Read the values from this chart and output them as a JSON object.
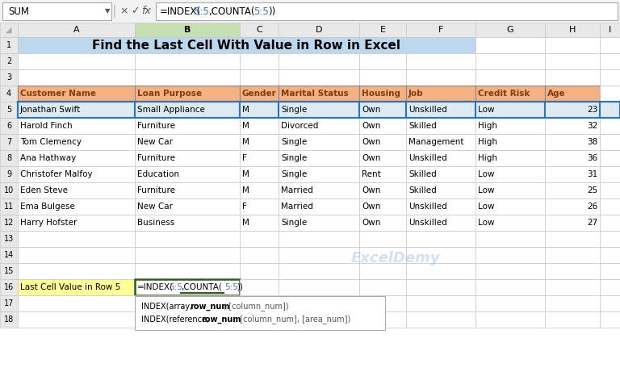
{
  "title": "Find the Last Cell With Value in Row in Excel",
  "name_box": "SUM",
  "col_letters": [
    "A",
    "B",
    "C",
    "D",
    "E",
    "F",
    "G",
    "H",
    "I"
  ],
  "headers": [
    "Customer Name",
    "Loan Purpose",
    "Gender",
    "Marital Status",
    "Housing",
    "Job",
    "Credit Risk",
    "Age"
  ],
  "data": [
    [
      "Jonathan Swift",
      "Small Appliance",
      "M",
      "Single",
      "Own",
      "Unskilled",
      "Low",
      "23"
    ],
    [
      "Harold Finch",
      "Furniture",
      "M",
      "Divorced",
      "Own",
      "Skilled",
      "High",
      "32"
    ],
    [
      "Tom Clemency",
      "New Car",
      "M",
      "Single",
      "Own",
      "Management",
      "High",
      "38"
    ],
    [
      "Ana Hathway",
      "Furniture",
      "F",
      "Single",
      "Own",
      "Unskilled",
      "High",
      "36"
    ],
    [
      "Christofer Malfoy",
      "Education",
      "M",
      "Single",
      "Rent",
      "Skilled",
      "Low",
      "31"
    ],
    [
      "Eden Steve",
      "Furniture",
      "M",
      "Married",
      "Own",
      "Skilled",
      "Low",
      "25"
    ],
    [
      "Ema Bulgese",
      "New Car",
      "F",
      "Married",
      "Own",
      "Unskilled",
      "Low",
      "26"
    ],
    [
      "Harry Hofster",
      "Business",
      "M",
      "Single",
      "Own",
      "Unskilled",
      "Low",
      "27"
    ]
  ],
  "label_row16_A": "Last Cell Value in Row 5",
  "watermark": "ExcelDemy",
  "header_bg": "#F4B183",
  "title_bg": "#BDD7EE",
  "row5_highlight": "#DEEAF1",
  "row16_A_bg": "#FFFF99",
  "grid_color": "#C8C8C8",
  "dark_grid": "#888888",
  "col_header_bg": "#E8E8E8",
  "selected_col_bg": "#C6E0B4",
  "selected_cell_border": "#375623",
  "blue_border": "#2F75B6",
  "tooltip_bg": "#FFFFFF",
  "header_text_color": "#843C0C",
  "formula_blue": "#4472C4",
  "formula_bar_bg": "#F2F2F2"
}
